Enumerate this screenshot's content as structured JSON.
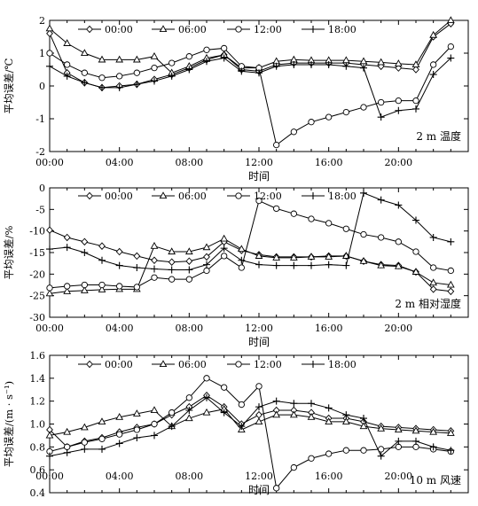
{
  "chart_data": [
    {
      "type": "line",
      "panel_label": "2 m 温度",
      "xlabel": "时间",
      "ylabel": "平均误差/℃",
      "xlim": [
        0,
        24
      ],
      "ylim": [
        -2,
        2
      ],
      "x_ticks": [
        "00:00",
        "04:00",
        "08:00",
        "12:00",
        "16:00",
        "20:00"
      ],
      "y_ticks": [
        "-2",
        "-1",
        "0",
        "1",
        "2"
      ],
      "y_tick_values": [
        -2,
        -1,
        0,
        1,
        2
      ],
      "x": [
        0,
        1,
        2,
        3,
        4,
        5,
        6,
        7,
        8,
        9,
        10,
        11,
        12,
        13,
        14,
        15,
        16,
        17,
        18,
        19,
        20,
        21,
        22,
        23
      ],
      "legend_position": "top",
      "series": [
        {
          "name": "00:00",
          "marker": "diamond",
          "values": [
            1.6,
            0.4,
            0.1,
            -0.05,
            0.0,
            0.05,
            0.2,
            0.35,
            0.55,
            0.8,
            0.95,
            0.5,
            0.45,
            0.65,
            0.7,
            0.7,
            0.7,
            0.7,
            0.65,
            0.6,
            0.55,
            0.5,
            1.5,
            1.9
          ]
        },
        {
          "name": "06:00",
          "marker": "triangle",
          "values": [
            1.75,
            1.3,
            1.0,
            0.8,
            0.8,
            0.8,
            0.9,
            0.4,
            0.6,
            0.85,
            0.95,
            0.55,
            0.55,
            0.75,
            0.8,
            0.78,
            0.78,
            0.78,
            0.75,
            0.72,
            0.68,
            0.65,
            1.55,
            2.0
          ]
        },
        {
          "name": "12:00",
          "marker": "circle",
          "values": [
            1.0,
            0.65,
            0.4,
            0.25,
            0.3,
            0.4,
            0.55,
            0.7,
            0.9,
            1.1,
            1.15,
            0.6,
            0.55,
            -1.8,
            -1.4,
            -1.1,
            -0.95,
            -0.8,
            -0.65,
            -0.5,
            -0.45,
            -0.45,
            0.65,
            1.2
          ]
        },
        {
          "name": "18:00",
          "marker": "plus",
          "values": [
            0.6,
            0.3,
            0.1,
            -0.05,
            -0.05,
            0.05,
            0.15,
            0.3,
            0.5,
            0.75,
            0.85,
            0.45,
            0.4,
            0.6,
            0.65,
            0.65,
            0.65,
            0.6,
            0.55,
            -0.95,
            -0.75,
            -0.7,
            0.35,
            0.85
          ]
        }
      ]
    },
    {
      "type": "line",
      "panel_label": "2 m 相对湿度",
      "xlabel": "时间",
      "ylabel": "平均误差/%",
      "xlim": [
        0,
        24
      ],
      "ylim": [
        -30,
        0
      ],
      "x_ticks": [
        "00:00",
        "04:00",
        "08:00",
        "12:00",
        "16:00",
        "20:00"
      ],
      "y_ticks": [
        "0",
        "-5",
        "-10",
        "-15",
        "-20",
        "-25",
        "-30"
      ],
      "y_tick_values": [
        0,
        -5,
        -10,
        -15,
        -20,
        -25,
        -30
      ],
      "x": [
        0,
        1,
        2,
        3,
        4,
        5,
        6,
        7,
        8,
        9,
        10,
        11,
        12,
        13,
        14,
        15,
        16,
        17,
        18,
        19,
        20,
        21,
        22,
        23
      ],
      "legend_position": "top",
      "series": [
        {
          "name": "00:00",
          "marker": "diamond",
          "values": [
            -9.8,
            -11.5,
            -12.5,
            -13.5,
            -14.8,
            -15.8,
            -16.8,
            -17.2,
            -17.0,
            -16.0,
            -12.5,
            -14.5,
            -15.5,
            -16.0,
            -16.0,
            -16.0,
            -15.8,
            -15.8,
            -17.0,
            -17.8,
            -18.0,
            -19.5,
            -23.5,
            -24.0
          ]
        },
        {
          "name": "06:00",
          "marker": "triangle",
          "values": [
            -24.5,
            -24.0,
            -23.8,
            -23.6,
            -23.5,
            -23.5,
            -13.5,
            -14.8,
            -14.8,
            -13.8,
            -11.8,
            -14.2,
            -15.8,
            -16.2,
            -16.2,
            -16.0,
            -16.0,
            -15.8,
            -17.0,
            -18.0,
            -18.2,
            -19.5,
            -22.0,
            -22.5
          ]
        },
        {
          "name": "12:00",
          "marker": "circle",
          "values": [
            -23.2,
            -22.8,
            -22.5,
            -22.5,
            -22.8,
            -23.0,
            -20.8,
            -21.2,
            -21.2,
            -19.2,
            -15.8,
            -18.5,
            -3.0,
            -4.8,
            -6.0,
            -7.2,
            -8.2,
            -9.5,
            -10.8,
            -11.5,
            -12.5,
            -14.8,
            -18.5,
            -19.2
          ]
        },
        {
          "name": "18:00",
          "marker": "plus",
          "values": [
            -14.2,
            -13.8,
            -15.0,
            -16.8,
            -18.0,
            -18.5,
            -18.8,
            -19.0,
            -19.0,
            -17.8,
            -14.0,
            -16.8,
            -17.8,
            -18.0,
            -18.0,
            -18.0,
            -17.8,
            -18.0,
            -1.2,
            -2.8,
            -4.0,
            -7.5,
            -11.5,
            -12.5
          ]
        }
      ]
    },
    {
      "type": "line",
      "panel_label": "10 m 风速",
      "xlabel": "时间",
      "ylabel": "平均误差/(m · s⁻¹)",
      "xlim": [
        0,
        24
      ],
      "ylim": [
        0.4,
        1.6
      ],
      "x_ticks": [
        "00:00",
        "04:00",
        "08:00",
        "12:00",
        "16:00",
        "20:00"
      ],
      "y_ticks": [
        "0.4",
        "0.6",
        "0.8",
        "1.0",
        "1.2",
        "1.4",
        "1.6"
      ],
      "y_tick_values": [
        0.4,
        0.6,
        0.8,
        1.0,
        1.2,
        1.4,
        1.6
      ],
      "x": [
        0,
        1,
        2,
        3,
        4,
        5,
        6,
        7,
        8,
        9,
        10,
        11,
        12,
        13,
        14,
        15,
        16,
        17,
        18,
        19,
        20,
        21,
        22,
        23
      ],
      "legend_position": "top",
      "series": [
        {
          "name": "00:00",
          "marker": "diamond",
          "values": [
            0.95,
            0.8,
            0.85,
            0.88,
            0.93,
            0.97,
            1.0,
            1.08,
            1.15,
            1.25,
            1.15,
            1.0,
            1.08,
            1.12,
            1.12,
            1.1,
            1.05,
            1.05,
            1.02,
            0.98,
            0.97,
            0.96,
            0.95,
            0.94
          ]
        },
        {
          "name": "06:00",
          "marker": "triangle",
          "values": [
            0.9,
            0.93,
            0.97,
            1.02,
            1.06,
            1.09,
            1.12,
            0.98,
            1.05,
            1.1,
            1.13,
            0.95,
            1.02,
            1.08,
            1.08,
            1.06,
            1.02,
            1.02,
            0.98,
            0.96,
            0.95,
            0.94,
            0.93,
            0.92
          ]
        },
        {
          "name": "12:00",
          "marker": "circle",
          "values": [
            0.76,
            0.8,
            0.84,
            0.87,
            0.91,
            0.95,
            1.0,
            1.1,
            1.23,
            1.4,
            1.32,
            1.17,
            1.33,
            0.44,
            0.62,
            0.7,
            0.74,
            0.77,
            0.77,
            0.78,
            0.8,
            0.8,
            0.78,
            0.76
          ]
        },
        {
          "name": "18:00",
          "marker": "plus",
          "values": [
            0.72,
            0.75,
            0.78,
            0.78,
            0.83,
            0.88,
            0.9,
            0.98,
            1.12,
            1.23,
            1.1,
            0.98,
            1.15,
            1.2,
            1.18,
            1.18,
            1.14,
            1.08,
            1.05,
            0.72,
            0.85,
            0.85,
            0.8,
            0.77
          ]
        }
      ]
    }
  ]
}
